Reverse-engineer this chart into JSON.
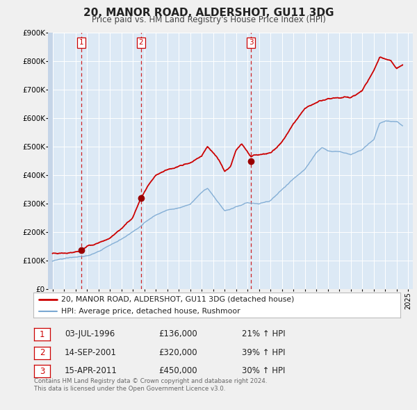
{
  "title": "20, MANOR ROAD, ALDERSHOT, GU11 3DG",
  "subtitle": "Price paid vs. HM Land Registry's House Price Index (HPI)",
  "legend_line1": "20, MANOR ROAD, ALDERSHOT, GU11 3DG (detached house)",
  "legend_line2": "HPI: Average price, detached house, Rushmoor",
  "red_color": "#cc0000",
  "blue_color": "#7aa8d2",
  "bg_color": "#dce9f5",
  "hatch_color": "#c5d5e8",
  "grid_color": "#ffffff",
  "fig_bg": "#f0f0f0",
  "transactions": [
    {
      "num": 1,
      "date": "03-JUL-1996",
      "year": 1996.5,
      "price": 136000,
      "pct": "21%",
      "dir": "↑"
    },
    {
      "num": 2,
      "date": "14-SEP-2001",
      "year": 2001.71,
      "price": 320000,
      "pct": "39%",
      "dir": "↑"
    },
    {
      "num": 3,
      "date": "15-APR-2011",
      "year": 2011.29,
      "price": 450000,
      "pct": "30%",
      "dir": "↑"
    }
  ],
  "footnote_line1": "Contains HM Land Registry data © Crown copyright and database right 2024.",
  "footnote_line2": "This data is licensed under the Open Government Licence v3.0.",
  "ylim": [
    0,
    900000
  ],
  "yticks": [
    0,
    100000,
    200000,
    300000,
    400000,
    500000,
    600000,
    700000,
    800000,
    900000
  ],
  "ytick_labels": [
    "£0",
    "£100K",
    "£200K",
    "£300K",
    "£400K",
    "£500K",
    "£600K",
    "£700K",
    "£800K",
    "£900K"
  ],
  "xlim_start": 1993.6,
  "xlim_end": 2025.4,
  "hpi_anchors_x": [
    1994.0,
    1995.0,
    1996.0,
    1997.0,
    1998.0,
    1999.0,
    2000.0,
    2001.0,
    2002.0,
    2003.0,
    2004.0,
    2005.0,
    2006.0,
    2007.0,
    2007.5,
    2008.0,
    2009.0,
    2010.0,
    2011.0,
    2012.0,
    2013.0,
    2014.0,
    2015.0,
    2016.0,
    2017.0,
    2017.5,
    2018.0,
    2019.0,
    2020.0,
    2021.0,
    2022.0,
    2022.5,
    2023.0,
    2024.0,
    2024.5
  ],
  "hpi_anchors_y": [
    98000,
    103000,
    110000,
    118000,
    130000,
    148000,
    168000,
    195000,
    228000,
    255000,
    275000,
    285000,
    295000,
    340000,
    355000,
    330000,
    278000,
    295000,
    308000,
    305000,
    318000,
    355000,
    395000,
    430000,
    490000,
    510000,
    500000,
    500000,
    488000,
    510000,
    545000,
    600000,
    610000,
    610000,
    595000
  ],
  "red_anchors_x": [
    1994.0,
    1995.0,
    1996.0,
    1996.5,
    1997.0,
    1998.0,
    1999.0,
    2000.0,
    2001.0,
    2001.71,
    2002.5,
    2003.0,
    2004.0,
    2005.0,
    2006.0,
    2007.0,
    2007.5,
    2008.0,
    2008.5,
    2009.0,
    2009.5,
    2010.0,
    2010.5,
    2011.0,
    2011.29,
    2011.5,
    2012.0,
    2013.0,
    2014.0,
    2015.0,
    2016.0,
    2017.0,
    2018.0,
    2019.0,
    2020.0,
    2021.0,
    2022.0,
    2022.5,
    2023.0,
    2023.5,
    2024.0,
    2024.5
  ],
  "red_anchors_y": [
    125000,
    128000,
    132000,
    136000,
    148000,
    165000,
    185000,
    220000,
    255000,
    320000,
    370000,
    395000,
    415000,
    425000,
    435000,
    465000,
    497000,
    470000,
    445000,
    405000,
    420000,
    475000,
    495000,
    465000,
    450000,
    455000,
    455000,
    460000,
    500000,
    565000,
    625000,
    645000,
    655000,
    655000,
    660000,
    685000,
    755000,
    800000,
    795000,
    790000,
    760000,
    775000
  ]
}
